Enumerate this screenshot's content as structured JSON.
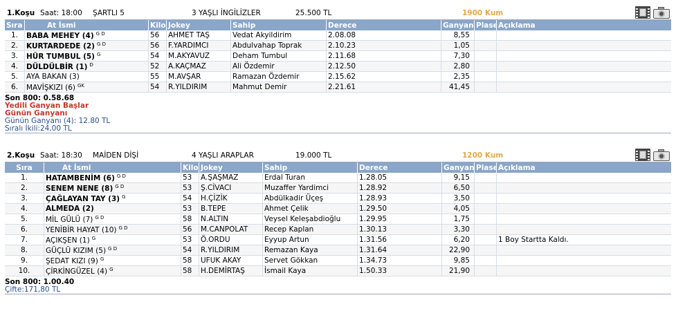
{
  "columns": [
    "Sıra",
    "At İsmi",
    "Kilo",
    "Jokey",
    "Sahip",
    "Derece",
    "Ganyan",
    "Plase",
    "Açıklama"
  ],
  "race1": {
    "title": "1.Koşu",
    "time": "Saat: 18:00",
    "condition": "ŞARTLI  5",
    "age": "3 YAŞLI İNGİLİZLER",
    "prize": "25.500 TL",
    "distance": "1900 Kum",
    "icons": [
      "film-icon",
      "camera-icon"
    ],
    "rows": [
      {
        "rank": "1.",
        "name": "BABA MEHEY (4)",
        "bold": true,
        "sup": "G D",
        "kilo": "56",
        "jokey": "AHMET TAŞ",
        "sahip": "Vedat Akyildirim",
        "derece": "2.08.08",
        "ganyan": "8,55",
        "plase": "",
        "note": ""
      },
      {
        "rank": "2.",
        "name": "KURTARDEDE (2)",
        "bold": true,
        "sup": "G D",
        "kilo": "56",
        "jokey": "F.YARDIMCI",
        "sahip": "Abdulvahap Toprak",
        "derece": "2.10.23",
        "ganyan": "1,05",
        "plase": "",
        "note": ""
      },
      {
        "rank": "3.",
        "name": "HÜR TUMBUL (5)",
        "bold": true,
        "sup": "G",
        "kilo": "54",
        "jokey": "M.AKYAVUZ",
        "sahip": "Deham Tumbul",
        "derece": "2.11.68",
        "ganyan": "7,30",
        "plase": "",
        "note": ""
      },
      {
        "rank": "4.",
        "name": "DÜLDÜLBİR (1)",
        "bold": true,
        "sup": "D",
        "kilo": "52",
        "jokey": "A.KAÇMAZ",
        "sahip": "Ali Özdemir",
        "derece": "2.12.50",
        "ganyan": "2,80",
        "plase": "",
        "note": ""
      },
      {
        "rank": "5.",
        "name": "AYA BAKAN (3)",
        "bold": false,
        "sup": "",
        "kilo": "55",
        "jokey": "M.AVŞAR",
        "sahip": "Ramazan Özdemir",
        "derece": "2.15.62",
        "ganyan": "2,35",
        "plase": "",
        "note": ""
      },
      {
        "rank": "6.",
        "name": "MAVİŞKIZI (6)",
        "bold": false,
        "sup": "GK",
        "kilo": "54",
        "jokey": "R.YILDIRIM",
        "sahip": "Mahmut Demir",
        "derece": "2.21.61",
        "ganyan": "41,45",
        "plase": "",
        "note": ""
      }
    ],
    "footer": {
      "son800": "Son 800: 0.58.68",
      "yedili": "Yedili Ganyan Başlar",
      "gunun": "Günün Ganyanı",
      "gunun_value": "Günün Ganyanı (4): 12.80 TL",
      "sirali": "Sıralı İkili:24,00 TL"
    }
  },
  "race2": {
    "title": "2.Koşu",
    "time": "Saat: 18:30",
    "condition": "MAİDEN  DİŞİ",
    "age": "4 YAŞLI ARAPLAR",
    "prize": "19.000 TL",
    "distance": "1200 Kum",
    "icons": [
      "film-icon",
      "camera-icon"
    ],
    "rows": [
      {
        "rank": "1.",
        "name": "HATAMBENİM (6)",
        "bold": true,
        "sup": "G D",
        "kilo": "53",
        "jokey": "A.ŞAŞMAZ",
        "sahip": "Erdal Turan",
        "derece": "1.28.05",
        "ganyan": "9,15",
        "plase": "",
        "note": ""
      },
      {
        "rank": "2.",
        "name": "SENEM NENE (8)",
        "bold": true,
        "sup": "G D",
        "kilo": "53",
        "jokey": "Ş.CİVACI",
        "sahip": "Muzaffer Yardimci",
        "derece": "1.28.92",
        "ganyan": "6,50",
        "plase": "",
        "note": ""
      },
      {
        "rank": "3.",
        "name": "ÇAĞLAYAN TAY (3)",
        "bold": true,
        "sup": "G",
        "kilo": "54",
        "jokey": "H.ÇİZİK",
        "sahip": "Abdülkadir Üçeş",
        "derece": "1.28.93",
        "ganyan": "3,50",
        "plase": "",
        "note": ""
      },
      {
        "rank": "4.",
        "name": "ALMEDA (2)",
        "bold": true,
        "sup": "",
        "kilo": "53",
        "jokey": "B.TEPE",
        "sahip": "Ahmet Çelik",
        "derece": "1.29.50",
        "ganyan": "4,05",
        "plase": "",
        "note": ""
      },
      {
        "rank": "5.",
        "name": "MİL GÜLÜ (7)",
        "bold": false,
        "sup": "G D",
        "kilo": "58",
        "jokey": "N.ALTIN",
        "sahip": "Veysel Keleşabdioğlu",
        "derece": "1.29.95",
        "ganyan": "1,75",
        "plase": "",
        "note": ""
      },
      {
        "rank": "6.",
        "name": "YENİBİR HAYAT (10)",
        "bold": false,
        "sup": "G D",
        "kilo": "56",
        "jokey": "M.CANPOLAT",
        "sahip": "Recep Kaplan",
        "derece": "1.30.13",
        "ganyan": "3,30",
        "plase": "",
        "note": ""
      },
      {
        "rank": "7.",
        "name": "AÇIKŞEN (1)",
        "bold": false,
        "sup": "G",
        "kilo": "53",
        "jokey": "Ö.ORDU",
        "sahip": "Eyyup Artun",
        "derece": "1.31.56",
        "ganyan": "6,20",
        "plase": "",
        "note": "1 Boy Startta Kaldı."
      },
      {
        "rank": "8.",
        "name": "GÜÇLÜ KIZIM (5)",
        "bold": false,
        "sup": "G D",
        "kilo": "54",
        "jokey": "R.YILDIRIM",
        "sahip": "Remazan Kaya",
        "derece": "1.31.64",
        "ganyan": "22,90",
        "plase": "",
        "note": ""
      },
      {
        "rank": "9.",
        "name": "ŞEDAT KIZI (9)",
        "bold": false,
        "sup": "G",
        "kilo": "58",
        "jokey": "UFUK AKAY",
        "sahip": "Servet Gökkan",
        "derece": "1.34.73",
        "ganyan": "9,85",
        "plase": "",
        "note": ""
      },
      {
        "rank": "10.",
        "name": "ÇİRKİNGÜZEL (4)",
        "bold": false,
        "sup": "G",
        "kilo": "58",
        "jokey": "H.DEMİRTAŞ",
        "sahip": "İsmail Kaya",
        "derece": "1.50.33",
        "ganyan": "21,90",
        "plase": "",
        "note": ""
      }
    ],
    "footer": {
      "son800": "Son 800: 1.00.40",
      "cifte": "Çifte:171,80 TL"
    }
  }
}
